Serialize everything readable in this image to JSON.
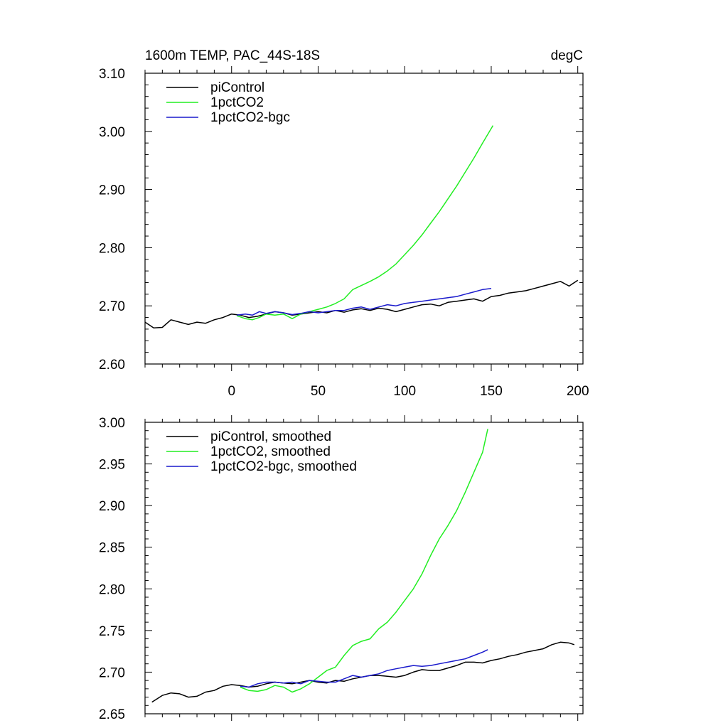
{
  "figure": {
    "title_left": "1600m TEMP, PAC_44S-18S",
    "title_right": "degC"
  },
  "chart_data": [
    {
      "type": "line",
      "xlim": [
        -50,
        203
      ],
      "ylim": [
        2.6,
        3.1
      ],
      "x_ticks": [
        0,
        50,
        100,
        150,
        200
      ],
      "x_tick_labels": [
        "0",
        "50",
        "100",
        "150",
        "200"
      ],
      "y_ticks": [
        2.6,
        2.7,
        2.8,
        2.9,
        3.0,
        3.1
      ],
      "y_tick_labels": [
        "2.60",
        "2.70",
        "2.80",
        "2.90",
        "3.00",
        "3.10"
      ],
      "legend_position": "top-left",
      "series": [
        {
          "name": "piControl",
          "color": "#000000",
          "points": [
            [
              -50,
              2.672
            ],
            [
              -45,
              2.662
            ],
            [
              -40,
              2.663
            ],
            [
              -35,
              2.676
            ],
            [
              -30,
              2.672
            ],
            [
              -25,
              2.668
            ],
            [
              -20,
              2.672
            ],
            [
              -15,
              2.67
            ],
            [
              -10,
              2.676
            ],
            [
              -5,
              2.68
            ],
            [
              0,
              2.686
            ],
            [
              5,
              2.684
            ],
            [
              10,
              2.68
            ],
            [
              15,
              2.682
            ],
            [
              20,
              2.686
            ],
            [
              25,
              2.69
            ],
            [
              30,
              2.688
            ],
            [
              35,
              2.684
            ],
            [
              40,
              2.686
            ],
            [
              45,
              2.688
            ],
            [
              50,
              2.69
            ],
            [
              55,
              2.688
            ],
            [
              60,
              2.692
            ],
            [
              65,
              2.689
            ],
            [
              70,
              2.693
            ],
            [
              75,
              2.695
            ],
            [
              80,
              2.692
            ],
            [
              85,
              2.696
            ],
            [
              90,
              2.694
            ],
            [
              95,
              2.69
            ],
            [
              100,
              2.694
            ],
            [
              105,
              2.698
            ],
            [
              110,
              2.702
            ],
            [
              115,
              2.703
            ],
            [
              120,
              2.7
            ],
            [
              125,
              2.706
            ],
            [
              130,
              2.708
            ],
            [
              135,
              2.71
            ],
            [
              140,
              2.712
            ],
            [
              145,
              2.708
            ],
            [
              150,
              2.716
            ],
            [
              155,
              2.718
            ],
            [
              160,
              2.722
            ],
            [
              165,
              2.724
            ],
            [
              170,
              2.726
            ],
            [
              175,
              2.73
            ],
            [
              180,
              2.734
            ],
            [
              185,
              2.738
            ],
            [
              190,
              2.742
            ],
            [
              195,
              2.734
            ],
            [
              200,
              2.744
            ]
          ]
        },
        {
          "name": "1pctCO2",
          "color": "#22ee22",
          "points": [
            [
              3,
              2.683
            ],
            [
              8,
              2.678
            ],
            [
              12,
              2.676
            ],
            [
              16,
              2.68
            ],
            [
              20,
              2.686
            ],
            [
              25,
              2.684
            ],
            [
              30,
              2.686
            ],
            [
              35,
              2.678
            ],
            [
              40,
              2.686
            ],
            [
              45,
              2.69
            ],
            [
              50,
              2.694
            ],
            [
              55,
              2.698
            ],
            [
              60,
              2.704
            ],
            [
              65,
              2.712
            ],
            [
              70,
              2.728
            ],
            [
              75,
              2.735
            ],
            [
              80,
              2.742
            ],
            [
              85,
              2.75
            ],
            [
              90,
              2.76
            ],
            [
              95,
              2.772
            ],
            [
              100,
              2.788
            ],
            [
              105,
              2.804
            ],
            [
              110,
              2.822
            ],
            [
              115,
              2.842
            ],
            [
              120,
              2.862
            ],
            [
              125,
              2.884
            ],
            [
              130,
              2.906
            ],
            [
              135,
              2.93
            ],
            [
              140,
              2.954
            ],
            [
              145,
              2.98
            ],
            [
              151,
              3.01
            ]
          ]
        },
        {
          "name": "1pctCO2-bgc",
          "color": "#1a1acc",
          "points": [
            [
              3,
              2.684
            ],
            [
              8,
              2.686
            ],
            [
              12,
              2.684
            ],
            [
              16,
              2.69
            ],
            [
              20,
              2.687
            ],
            [
              25,
              2.69
            ],
            [
              30,
              2.688
            ],
            [
              35,
              2.685
            ],
            [
              40,
              2.687
            ],
            [
              45,
              2.69
            ],
            [
              50,
              2.688
            ],
            [
              55,
              2.69
            ],
            [
              60,
              2.692
            ],
            [
              65,
              2.692
            ],
            [
              70,
              2.696
            ],
            [
              75,
              2.698
            ],
            [
              80,
              2.694
            ],
            [
              85,
              2.698
            ],
            [
              90,
              2.702
            ],
            [
              95,
              2.7
            ],
            [
              100,
              2.704
            ],
            [
              105,
              2.706
            ],
            [
              110,
              2.708
            ],
            [
              115,
              2.71
            ],
            [
              120,
              2.712
            ],
            [
              125,
              2.714
            ],
            [
              130,
              2.716
            ],
            [
              135,
              2.72
            ],
            [
              140,
              2.724
            ],
            [
              145,
              2.728
            ],
            [
              150,
              2.73
            ]
          ]
        }
      ]
    },
    {
      "type": "line",
      "xlim": [
        -50,
        203
      ],
      "ylim": [
        2.65,
        3.0
      ],
      "x_ticks": [
        0,
        50,
        100,
        150,
        200
      ],
      "y_ticks": [
        2.65,
        2.7,
        2.75,
        2.8,
        2.85,
        2.9,
        2.95,
        3.0
      ],
      "y_tick_labels": [
        "2.65",
        "2.70",
        "2.75",
        "2.80",
        "2.85",
        "2.90",
        "2.95",
        "3.00"
      ],
      "legend_position": "top-left",
      "series": [
        {
          "name": "piControl, smoothed",
          "color": "#000000",
          "points": [
            [
              -46,
              2.664
            ],
            [
              -40,
              2.672
            ],
            [
              -35,
              2.675
            ],
            [
              -30,
              2.674
            ],
            [
              -25,
              2.67
            ],
            [
              -20,
              2.671
            ],
            [
              -15,
              2.676
            ],
            [
              -10,
              2.678
            ],
            [
              -5,
              2.683
            ],
            [
              0,
              2.685
            ],
            [
              5,
              2.684
            ],
            [
              10,
              2.682
            ],
            [
              15,
              2.683
            ],
            [
              20,
              2.686
            ],
            [
              25,
              2.688
            ],
            [
              30,
              2.687
            ],
            [
              35,
              2.686
            ],
            [
              40,
              2.688
            ],
            [
              45,
              2.69
            ],
            [
              50,
              2.688
            ],
            [
              55,
              2.687
            ],
            [
              60,
              2.69
            ],
            [
              65,
              2.689
            ],
            [
              70,
              2.692
            ],
            [
              75,
              2.694
            ],
            [
              80,
              2.696
            ],
            [
              85,
              2.696
            ],
            [
              90,
              2.695
            ],
            [
              95,
              2.694
            ],
            [
              100,
              2.696
            ],
            [
              105,
              2.7
            ],
            [
              110,
              2.703
            ],
            [
              115,
              2.702
            ],
            [
              120,
              2.702
            ],
            [
              125,
              2.705
            ],
            [
              130,
              2.708
            ],
            [
              135,
              2.712
            ],
            [
              140,
              2.712
            ],
            [
              145,
              2.711
            ],
            [
              150,
              2.714
            ],
            [
              155,
              2.716
            ],
            [
              160,
              2.719
            ],
            [
              165,
              2.721
            ],
            [
              170,
              2.724
            ],
            [
              175,
              2.726
            ],
            [
              180,
              2.728
            ],
            [
              185,
              2.733
            ],
            [
              190,
              2.736
            ],
            [
              195,
              2.735
            ],
            [
              198,
              2.733
            ]
          ]
        },
        {
          "name": "1pctCO2, smoothed",
          "color": "#22ee22",
          "points": [
            [
              5,
              2.682
            ],
            [
              10,
              2.678
            ],
            [
              15,
              2.677
            ],
            [
              20,
              2.679
            ],
            [
              25,
              2.684
            ],
            [
              30,
              2.682
            ],
            [
              35,
              2.676
            ],
            [
              40,
              2.68
            ],
            [
              45,
              2.686
            ],
            [
              50,
              2.694
            ],
            [
              55,
              2.702
            ],
            [
              60,
              2.706
            ],
            [
              65,
              2.72
            ],
            [
              70,
              2.732
            ],
            [
              75,
              2.737
            ],
            [
              80,
              2.74
            ],
            [
              85,
              2.752
            ],
            [
              90,
              2.76
            ],
            [
              95,
              2.772
            ],
            [
              100,
              2.786
            ],
            [
              105,
              2.8
            ],
            [
              110,
              2.818
            ],
            [
              115,
              2.84
            ],
            [
              120,
              2.86
            ],
            [
              125,
              2.876
            ],
            [
              130,
              2.894
            ],
            [
              135,
              2.916
            ],
            [
              140,
              2.94
            ],
            [
              145,
              2.964
            ],
            [
              148,
              2.992
            ]
          ]
        },
        {
          "name": "1pctCO2-bgc, smoothed",
          "color": "#1a1acc",
          "points": [
            [
              5,
              2.683
            ],
            [
              10,
              2.682
            ],
            [
              15,
              2.686
            ],
            [
              20,
              2.688
            ],
            [
              25,
              2.688
            ],
            [
              30,
              2.687
            ],
            [
              35,
              2.688
            ],
            [
              40,
              2.686
            ],
            [
              45,
              2.69
            ],
            [
              50,
              2.689
            ],
            [
              55,
              2.688
            ],
            [
              60,
              2.688
            ],
            [
              65,
              2.692
            ],
            [
              70,
              2.696
            ],
            [
              75,
              2.694
            ],
            [
              80,
              2.696
            ],
            [
              85,
              2.698
            ],
            [
              90,
              2.702
            ],
            [
              95,
              2.704
            ],
            [
              100,
              2.706
            ],
            [
              105,
              2.708
            ],
            [
              110,
              2.707
            ],
            [
              115,
              2.708
            ],
            [
              120,
              2.71
            ],
            [
              125,
              2.712
            ],
            [
              130,
              2.714
            ],
            [
              135,
              2.716
            ],
            [
              140,
              2.72
            ],
            [
              145,
              2.724
            ],
            [
              148,
              2.727
            ]
          ]
        }
      ]
    }
  ]
}
